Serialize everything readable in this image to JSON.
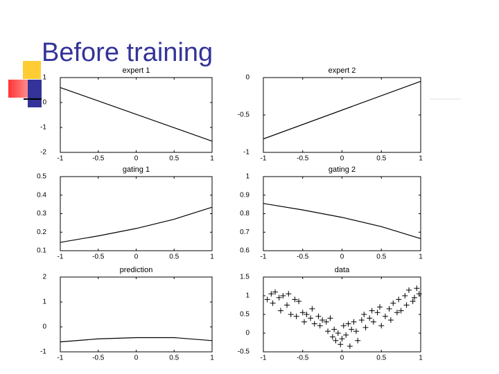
{
  "title": "Before training",
  "chart_data": [
    {
      "type": "line",
      "title": "expert 1",
      "x": [
        -1,
        1
      ],
      "values": [
        0.6,
        -1.55
      ],
      "color": "#000000",
      "xlim": [
        -1,
        1
      ],
      "ylim": [
        -2,
        1
      ],
      "xticks": [
        -1,
        -0.5,
        0,
        0.5,
        1
      ],
      "yticks": [
        -2,
        -1,
        0,
        1
      ]
    },
    {
      "type": "line",
      "title": "expert 2",
      "x": [
        -1,
        1
      ],
      "values": [
        -0.82,
        -0.05
      ],
      "color": "#000000",
      "xlim": [
        -1,
        1
      ],
      "ylim": [
        -1,
        0
      ],
      "xticks": [
        -1,
        -0.5,
        0,
        0.5,
        1
      ],
      "yticks": [
        -1,
        -0.5,
        0
      ]
    },
    {
      "type": "line",
      "title": "gating 1",
      "x": [
        -1,
        -0.5,
        0,
        0.5,
        1
      ],
      "values": [
        0.145,
        0.18,
        0.22,
        0.27,
        0.335
      ],
      "color": "#000000",
      "xlim": [
        -1,
        1
      ],
      "ylim": [
        0.1,
        0.5
      ],
      "xticks": [
        -1,
        -0.5,
        0,
        0.5,
        1
      ],
      "yticks": [
        0.1,
        0.2,
        0.3,
        0.4,
        0.5
      ]
    },
    {
      "type": "line",
      "title": "gating 2",
      "x": [
        -1,
        -0.5,
        0,
        0.5,
        1
      ],
      "values": [
        0.855,
        0.82,
        0.78,
        0.73,
        0.665
      ],
      "color": "#000000",
      "xlim": [
        -1,
        1
      ],
      "ylim": [
        0.6,
        1
      ],
      "xticks": [
        -1,
        -0.5,
        0,
        0.5,
        1
      ],
      "yticks": [
        0.6,
        0.7,
        0.8,
        0.9,
        1
      ]
    },
    {
      "type": "line",
      "title": "prediction",
      "x": [
        -1,
        -0.5,
        0,
        0.5,
        1
      ],
      "values": [
        -0.6,
        -0.48,
        -0.43,
        -0.43,
        -0.55
      ],
      "color": "#000000",
      "xlim": [
        -1,
        1
      ],
      "ylim": [
        -1,
        2
      ],
      "xticks": [
        -1,
        -0.5,
        0,
        0.5,
        1
      ],
      "yticks": [
        -1,
        0,
        1,
        2
      ]
    },
    {
      "type": "scatter",
      "title": "data",
      "color": "#000000",
      "x": [
        -0.95,
        -0.9,
        -0.88,
        -0.85,
        -0.8,
        -0.78,
        -0.75,
        -0.7,
        -0.68,
        -0.65,
        -0.6,
        -0.58,
        -0.55,
        -0.5,
        -0.48,
        -0.45,
        -0.4,
        -0.38,
        -0.35,
        -0.3,
        -0.28,
        -0.25,
        -0.2,
        -0.18,
        -0.15,
        -0.12,
        -0.1,
        -0.08,
        -0.05,
        -0.02,
        0,
        0.02,
        0.05,
        0.08,
        0.1,
        0.12,
        0.15,
        0.18,
        0.2,
        0.25,
        0.28,
        0.3,
        0.35,
        0.38,
        0.4,
        0.45,
        0.48,
        0.5,
        0.55,
        0.6,
        0.62,
        0.65,
        0.7,
        0.72,
        0.75,
        0.8,
        0.82,
        0.85,
        0.9,
        0.92,
        0.95,
        0.98
      ],
      "values": [
        0.9,
        1.05,
        0.8,
        1.1,
        0.95,
        0.6,
        1.0,
        0.75,
        1.05,
        0.5,
        0.9,
        0.45,
        0.85,
        0.55,
        0.3,
        0.5,
        0.4,
        0.65,
        0.25,
        0.45,
        0.2,
        0.35,
        0.3,
        0.05,
        0.4,
        -0.1,
        0.1,
        -0.2,
        0.0,
        -0.3,
        -0.15,
        0.2,
        -0.05,
        0.25,
        -0.35,
        0.1,
        0.3,
        0.05,
        -0.2,
        0.35,
        0.5,
        0.15,
        0.4,
        0.6,
        0.3,
        0.55,
        0.7,
        0.2,
        0.45,
        0.65,
        0.35,
        0.8,
        0.55,
        0.9,
        0.6,
        1.0,
        0.75,
        1.15,
        0.85,
        0.95,
        1.2,
        1.05
      ],
      "xlim": [
        -1,
        1
      ],
      "ylim": [
        -0.5,
        1.5
      ],
      "xticks": [
        -1,
        -0.5,
        0,
        0.5,
        1
      ],
      "yticks": [
        -0.5,
        0,
        0.5,
        1,
        1.5
      ]
    }
  ]
}
